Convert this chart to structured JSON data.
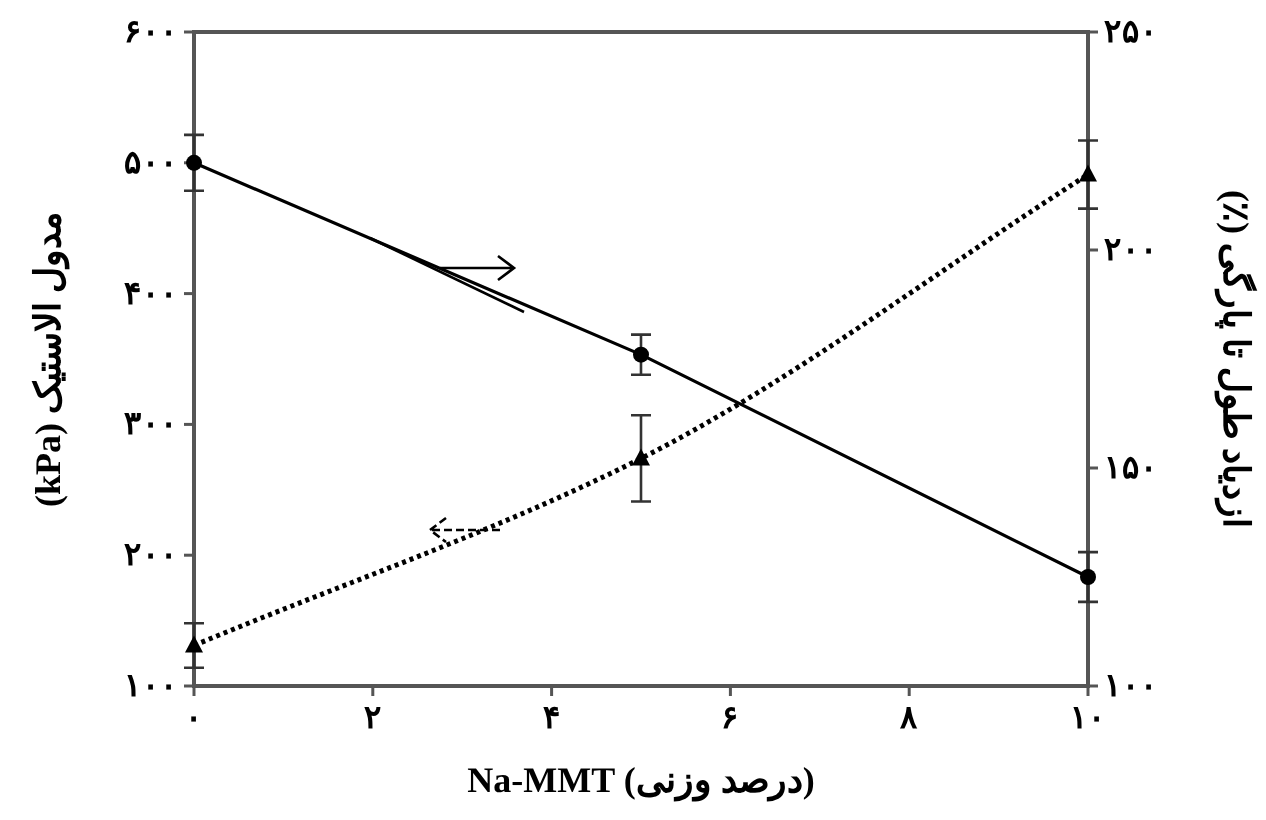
{
  "chart_data": {
    "type": "line",
    "xlabel": "Na-MMT (درصد وزنی)",
    "ylabel": "مدول الاستیک (kPa)",
    "y2label": "ازدیاد طول تا پارگی (٪)",
    "x": [
      0,
      5,
      10
    ],
    "series": [
      {
        "color": "#000000",
        "values": [
          131,
          274,
          491
        ],
        "errors": [
          17,
          33,
          26
        ],
        "marker": "triangle",
        "line_style": "dotted"
      },
      {
        "color": "#000000",
        "values": [
          220,
          176,
          125
        ],
        "errors": [
          6.4,
          4.6,
          5.7
        ],
        "marker": "circle",
        "line_style": "solid",
        "axis": "y2"
      }
    ],
    "xlim": [
      0,
      10
    ],
    "ylim": [
      100,
      600
    ],
    "y2lim": [
      100,
      250
    ],
    "xticks": [
      {
        "value": 0,
        "label": "۰"
      },
      {
        "value": 2,
        "label": "۲"
      },
      {
        "value": 4,
        "label": "۴"
      },
      {
        "value": 6,
        "label": "۶"
      },
      {
        "value": 8,
        "label": "۸"
      },
      {
        "value": 10,
        "label": "۱۰"
      }
    ],
    "yticks": [
      {
        "value": 100,
        "label": "۱۰۰"
      },
      {
        "value": 200,
        "label": "۲۰۰"
      },
      {
        "value": 300,
        "label": "۳۰۰"
      },
      {
        "value": 400,
        "label": "۴۰۰"
      },
      {
        "value": 500,
        "label": "۵۰۰"
      },
      {
        "value": 600,
        "label": "۶۰۰"
      }
    ],
    "y2ticks": [
      {
        "value": 100,
        "label": "۱۰۰"
      },
      {
        "value": 150,
        "label": "۱۵۰"
      },
      {
        "value": 200,
        "label": "۲۰۰"
      },
      {
        "value": 250,
        "label": "۲۵۰"
      }
    ],
    "grid": false
  }
}
